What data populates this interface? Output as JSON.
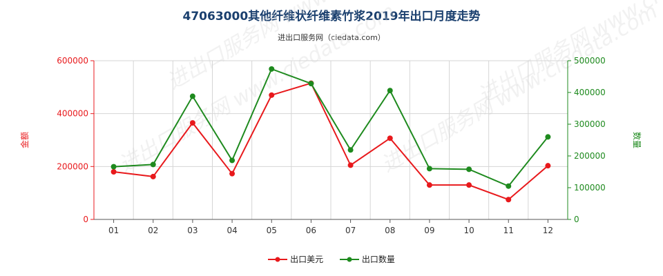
{
  "title": "47063000其他纤维状纤维素竹浆2019年出口月度走势",
  "subtitle": "进出口服务网（ciedata.com）",
  "watermark": "进出口服务网 www.ciedata.com",
  "colors": {
    "value": "#e8191c",
    "quantity": "#1e8a1e",
    "grid": "#d5d5d5",
    "axis": "#555555"
  },
  "chart_data": {
    "type": "line",
    "categories": [
      "01",
      "02",
      "03",
      "04",
      "05",
      "06",
      "07",
      "08",
      "09",
      "10",
      "11",
      "12"
    ],
    "y_left": {
      "label": "金额",
      "ylim": [
        0,
        600000
      ],
      "ticks": [
        "0",
        "200000",
        "400000",
        "600000"
      ]
    },
    "y_right": {
      "label": "数量",
      "ylim": [
        0,
        500000
      ],
      "ticks": [
        "0",
        "100000",
        "200000",
        "300000",
        "400000",
        "500000"
      ]
    },
    "series": [
      {
        "name": "出口美元",
        "axis": "left",
        "color": "#e8191c",
        "values": [
          180000,
          162000,
          365000,
          173000,
          470000,
          515000,
          205000,
          307000,
          130000,
          130000,
          75000,
          203000
        ]
      },
      {
        "name": "出口数量",
        "axis": "right",
        "color": "#1e8a1e",
        "values": [
          166000,
          173000,
          388000,
          186000,
          474000,
          428000,
          219000,
          406000,
          160000,
          158000,
          105000,
          260000
        ]
      }
    ],
    "grid": true,
    "legend": "bottom-center"
  }
}
